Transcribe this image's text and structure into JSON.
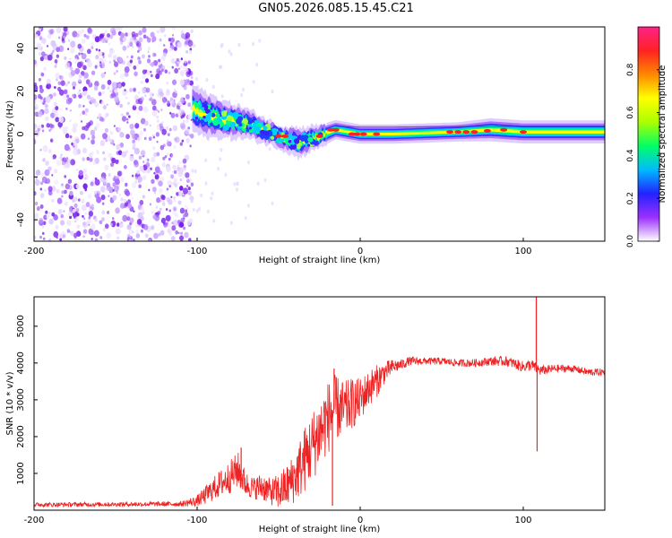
{
  "title": "GN05.2026.085.15.45.C21",
  "chart_data": [
    {
      "type": "heatmap",
      "xlabel": "Height of straight line (km)",
      "ylabel": "Frequency (Hz)",
      "xlim": [
        -200,
        150
      ],
      "ylim": [
        -50,
        50
      ],
      "x_ticks": [
        "-200",
        "-100",
        "0",
        "100"
      ],
      "y_ticks": [
        "-40",
        "-20",
        "0",
        "20",
        "40"
      ],
      "colorbar": {
        "label": "Normalized spectral amplitude",
        "range": [
          0,
          1
        ],
        "ticks": [
          "0.0",
          "0.2",
          "0.4",
          "0.6",
          "0.8"
        ],
        "colors": [
          "#ffffff",
          "#9b30ff",
          "#2222ff",
          "#00bbff",
          "#00ff66",
          "#aaff00",
          "#ffff00",
          "#ff8800",
          "#ff2222",
          "#ff2288"
        ]
      },
      "noise_region": {
        "x_range": [
          -200,
          -103
        ],
        "freq_range": [
          -50,
          50
        ],
        "amplitude": 0.12
      },
      "signal_ridge": [
        {
          "x": -103,
          "freq": 12,
          "width": 6,
          "amplitude": 0.3
        },
        {
          "x": -95,
          "freq": 9,
          "width": 6,
          "amplitude": 0.32
        },
        {
          "x": -85,
          "freq": 7,
          "width": 5,
          "amplitude": 0.36
        },
        {
          "x": -70,
          "freq": 5,
          "width": 4,
          "amplitude": 0.4
        },
        {
          "x": -50,
          "freq": -1,
          "width": 3,
          "amplitude": 0.5
        },
        {
          "x": -38,
          "freq": -4,
          "width": 4,
          "amplitude": 0.35
        },
        {
          "x": -25,
          "freq": -1,
          "width": 3,
          "amplitude": 0.55
        },
        {
          "x": -15,
          "freq": 2,
          "width": 2.5,
          "amplitude": 0.7
        },
        {
          "x": 0,
          "freq": 0,
          "width": 2.5,
          "amplitude": 0.72
        },
        {
          "x": 20,
          "freq": 0,
          "width": 2.5,
          "amplitude": 0.7
        },
        {
          "x": 60,
          "freq": 1,
          "width": 2.5,
          "amplitude": 0.85
        },
        {
          "x": 80,
          "freq": 2,
          "width": 3,
          "amplitude": 0.75
        },
        {
          "x": 100,
          "freq": 1,
          "width": 3,
          "amplitude": 0.7
        },
        {
          "x": 150,
          "freq": 1,
          "width": 3,
          "amplitude": 0.7
        }
      ]
    },
    {
      "type": "line",
      "xlabel": "Height of straight line (km)",
      "ylabel": "SNR (10 * v/v)",
      "xlim": [
        -200,
        150
      ],
      "ylim": [
        0,
        5800
      ],
      "x_ticks": [
        "-200",
        "-100",
        "0",
        "100"
      ],
      "y_ticks": [
        "1000",
        "2000",
        "3000",
        "4000",
        "5000"
      ],
      "line_color": "#ee2222",
      "series": [
        {
          "name": "SNR",
          "x": [
            -200,
            -150,
            -110,
            -100,
            -95,
            -88,
            -80,
            -75,
            -70,
            -65,
            -60,
            -55,
            -50,
            -45,
            -40,
            -35,
            -30,
            -25,
            -20,
            -15,
            -10,
            -5,
            0,
            5,
            10,
            15,
            20,
            25,
            30,
            40,
            50,
            60,
            70,
            80,
            90,
            100,
            105,
            108,
            110,
            112,
            120,
            130,
            140,
            150
          ],
          "y": [
            150,
            160,
            170,
            250,
            400,
            650,
            900,
            1100,
            700,
            600,
            650,
            500,
            500,
            650,
            900,
            1300,
            1700,
            2100,
            2500,
            2800,
            2700,
            2900,
            3000,
            3300,
            3500,
            3750,
            3900,
            3950,
            4050,
            4050,
            4050,
            4000,
            4000,
            4050,
            4050,
            3900,
            3950,
            3850,
            3800,
            3800,
            3850,
            3850,
            3750,
            3750
          ],
          "spread": [
            60,
            60,
            70,
            150,
            250,
            350,
            450,
            500,
            350,
            300,
            400,
            350,
            500,
            600,
            700,
            900,
            950,
            1000,
            1000,
            900,
            800,
            700,
            600,
            500,
            450,
            300,
            200,
            150,
            120,
            100,
            100,
            100,
            110,
            120,
            140,
            150,
            160,
            160,
            150,
            130,
            110,
            100,
            100,
            100
          ]
        }
      ],
      "spikes": [
        {
          "x": -16,
          "y": 3850
        },
        {
          "x": -17,
          "y": 120
        },
        {
          "x": 108,
          "y": 5850
        },
        {
          "x": 108.5,
          "y": 1600
        },
        {
          "x": -73,
          "y": 1700
        }
      ]
    }
  ]
}
